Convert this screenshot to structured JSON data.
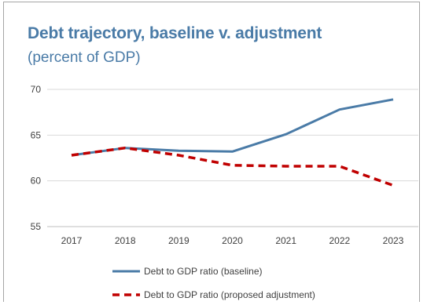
{
  "chart_data": {
    "type": "line",
    "title": "Debt trajectory, baseline v. adjustment",
    "subtitle": "(percent of GDP)",
    "xlabel": "",
    "ylabel": "",
    "x": [
      "2017",
      "2018",
      "2019",
      "2020",
      "2021",
      "2022",
      "2023"
    ],
    "ylim": [
      55,
      70
    ],
    "yticks": [
      55,
      60,
      65,
      70
    ],
    "grid": "horizontal",
    "legend_position": "bottom",
    "series": [
      {
        "name": "Debt to GDP ratio (baseline)",
        "values": [
          62.8,
          63.6,
          63.3,
          63.2,
          65.1,
          67.8,
          68.9
        ],
        "color": "#4a7ba7",
        "style": "solid"
      },
      {
        "name": "Debt to GDP ratio (proposed adjustment)",
        "values": [
          62.8,
          63.6,
          62.8,
          61.7,
          61.6,
          61.6,
          59.5
        ],
        "color": "#c00000",
        "style": "dashed"
      }
    ]
  }
}
